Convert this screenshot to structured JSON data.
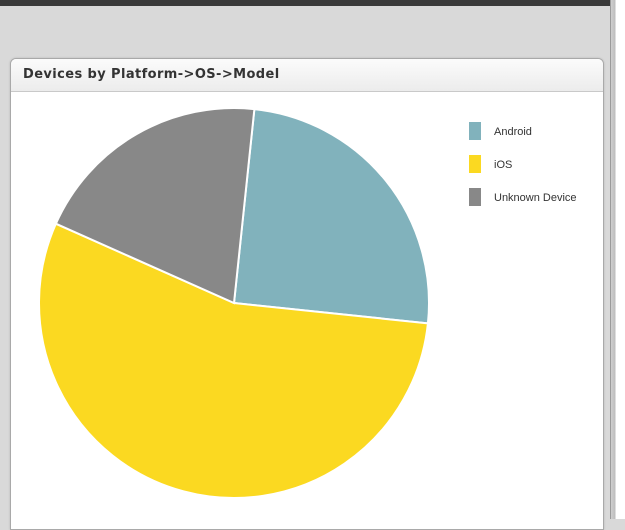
{
  "panel": {
    "title": "Devices by Platform->OS->Model"
  },
  "colors": {
    "android": "#81b2bc",
    "ios": "#fbd921",
    "unknown": "#888888"
  },
  "chart_data": {
    "type": "pie",
    "categories": [
      "Android",
      "iOS",
      "Unknown Device"
    ],
    "values": [
      25,
      55,
      20
    ],
    "colors": [
      "#81b2bc",
      "#fbd921",
      "#888888"
    ],
    "start_angle_deg": -84,
    "legend_position": "top-right"
  }
}
